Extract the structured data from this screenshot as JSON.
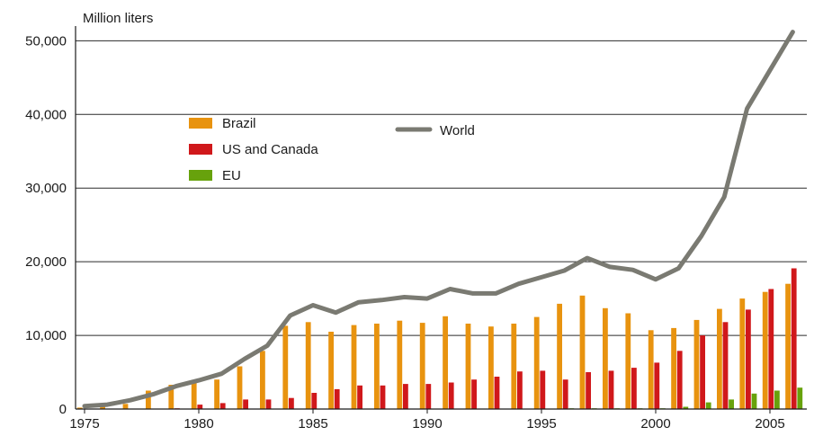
{
  "chart_data": {
    "type": "bar",
    "y_unit_label": "Million liters",
    "x": [
      1975,
      1976,
      1977,
      1978,
      1979,
      1980,
      1981,
      1982,
      1983,
      1984,
      1985,
      1986,
      1987,
      1988,
      1989,
      1990,
      1991,
      1992,
      1993,
      1994,
      1995,
      1996,
      1997,
      1998,
      1999,
      2000,
      2001,
      2002,
      2003,
      2004,
      2005,
      2006
    ],
    "x_tick_labels": [
      "1975",
      "1980",
      "1985",
      "1990",
      "1995",
      "2000",
      "2005"
    ],
    "y_tick_labels": [
      "0",
      "10,000",
      "20,000",
      "30,000",
      "40,000",
      "50,000"
    ],
    "ylim": [
      0,
      52000
    ],
    "xlim": [
      1975,
      2006.5
    ],
    "grid": "horizontal",
    "legend_position": "upper-left",
    "series": [
      {
        "name": "Brazil",
        "kind": "bar",
        "color": "#e8930f",
        "values": [
          200,
          400,
          700,
          2500,
          3300,
          3700,
          4000,
          5800,
          7900,
          11300,
          11800,
          10500,
          11400,
          11600,
          12000,
          11700,
          12600,
          11600,
          11200,
          11600,
          12500,
          14300,
          15400,
          13700,
          13000,
          10700,
          11000,
          12100,
          13600,
          15000,
          15900,
          17000
        ]
      },
      {
        "name": "US and Canada",
        "kind": "bar",
        "color": "#d0181b",
        "values": [
          0,
          0,
          0,
          0,
          100,
          600,
          800,
          1300,
          1300,
          1500,
          2200,
          2700,
          3200,
          3200,
          3400,
          3400,
          3600,
          4000,
          4400,
          5100,
          5200,
          4000,
          5000,
          5200,
          5600,
          6300,
          7900,
          10000,
          11800,
          13500,
          16300,
          19100
        ]
      },
      {
        "name": "EU",
        "kind": "bar",
        "color": "#67a20c",
        "values": [
          0,
          0,
          0,
          0,
          0,
          0,
          0,
          0,
          0,
          0,
          0,
          0,
          0,
          0,
          0,
          0,
          0,
          0,
          0,
          0,
          0,
          100,
          100,
          100,
          100,
          100,
          300,
          900,
          1300,
          2100,
          2500,
          2900
        ]
      },
      {
        "name": "World",
        "kind": "line",
        "color": "#7a7a72",
        "values": [
          400,
          600,
          1200,
          2000,
          3100,
          3900,
          4800,
          6800,
          8600,
          12700,
          14100,
          13100,
          14500,
          14800,
          15200,
          15000,
          16300,
          15700,
          15700,
          17000,
          17900,
          18800,
          20500,
          19300,
          18900,
          17600,
          19100,
          23500,
          28800,
          40800,
          46000,
          51200
        ]
      }
    ]
  }
}
